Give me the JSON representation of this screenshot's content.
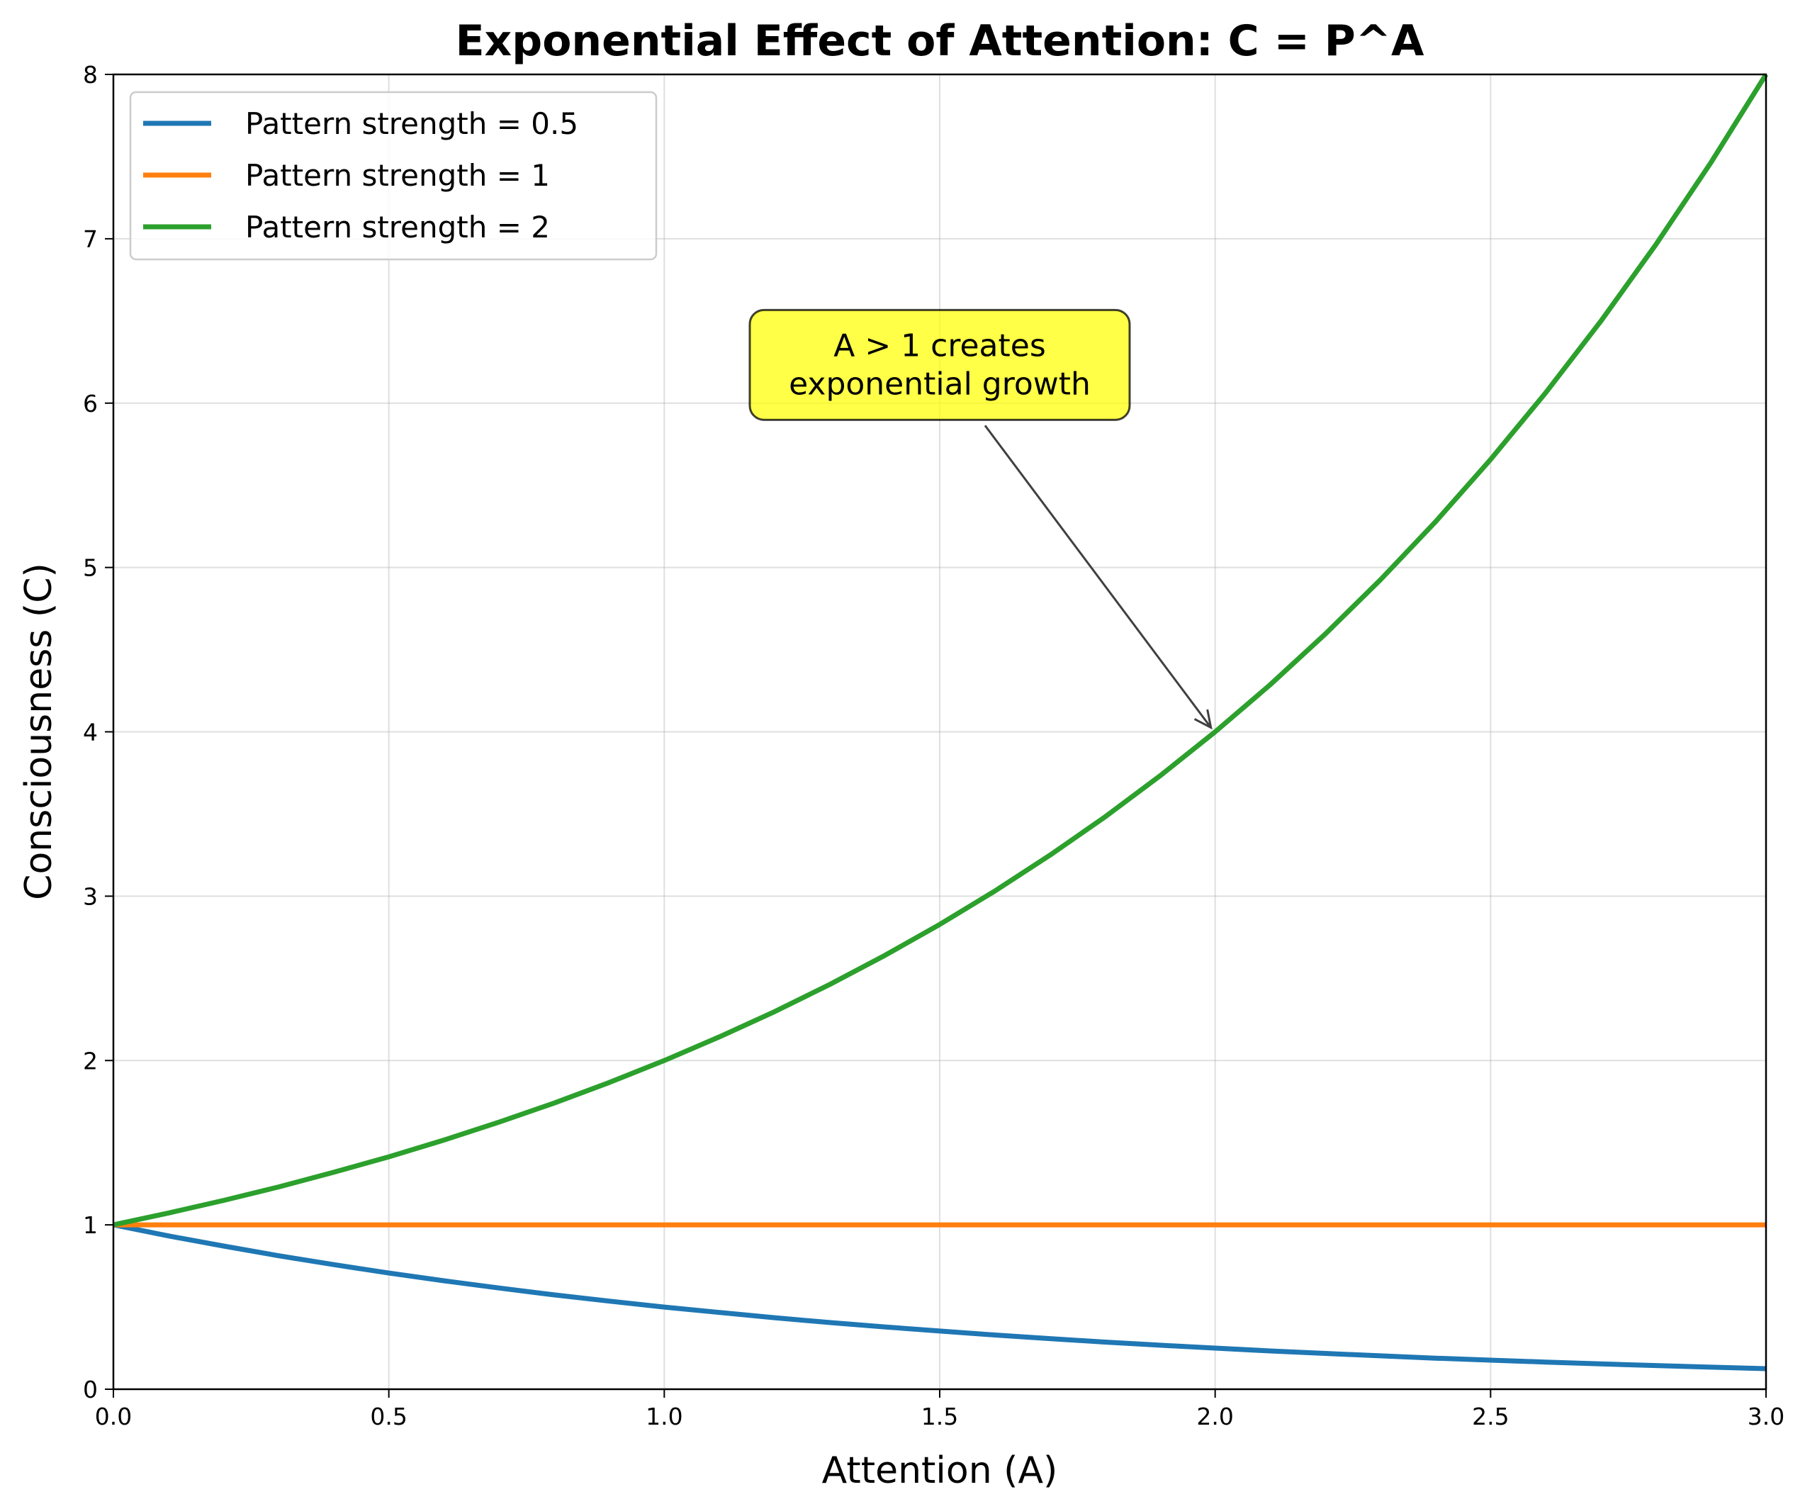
{
  "chart_data": {
    "type": "line",
    "title": "Exponential Effect of Attention: C = P^A",
    "xlabel": "Attention (A)",
    "ylabel": "Consciousness (C)",
    "xlim": [
      0.0,
      3.0
    ],
    "ylim": [
      0,
      8
    ],
    "xticks": [
      "0.0",
      "0.5",
      "1.0",
      "1.5",
      "2.0",
      "2.5",
      "3.0"
    ],
    "yticks": [
      "0",
      "1",
      "2",
      "3",
      "4",
      "5",
      "6",
      "7",
      "8"
    ],
    "grid": true,
    "legend_position": "upper-left",
    "x": [
      0.0,
      0.1,
      0.2,
      0.3,
      0.4,
      0.5,
      0.6,
      0.7,
      0.8,
      0.9,
      1.0,
      1.1,
      1.2,
      1.3,
      1.4,
      1.5,
      1.6,
      1.7,
      1.8,
      1.9,
      2.0,
      2.1,
      2.2,
      2.3,
      2.4,
      2.5,
      2.6,
      2.7,
      2.8,
      2.9,
      3.0
    ],
    "series": [
      {
        "name": "Pattern strength = 0.5",
        "color": "#1f77b4",
        "values": [
          1.0,
          0.933,
          0.871,
          0.812,
          0.758,
          0.707,
          0.66,
          0.616,
          0.574,
          0.536,
          0.5,
          0.467,
          0.435,
          0.406,
          0.379,
          0.354,
          0.33,
          0.308,
          0.287,
          0.268,
          0.25,
          0.233,
          0.218,
          0.203,
          0.189,
          0.177,
          0.165,
          0.154,
          0.144,
          0.134,
          0.125
        ]
      },
      {
        "name": "Pattern strength = 1",
        "color": "#ff7f0e",
        "values": [
          1,
          1,
          1,
          1,
          1,
          1,
          1,
          1,
          1,
          1,
          1,
          1,
          1,
          1,
          1,
          1,
          1,
          1,
          1,
          1,
          1,
          1,
          1,
          1,
          1,
          1,
          1,
          1,
          1,
          1,
          1
        ]
      },
      {
        "name": "Pattern strength = 2",
        "color": "#2ca02c",
        "values": [
          1.0,
          1.072,
          1.149,
          1.231,
          1.32,
          1.414,
          1.516,
          1.625,
          1.741,
          1.866,
          2.0,
          2.144,
          2.297,
          2.462,
          2.639,
          2.828,
          3.031,
          3.249,
          3.482,
          3.732,
          4.0,
          4.287,
          4.595,
          4.925,
          5.278,
          5.657,
          6.063,
          6.498,
          6.964,
          7.464,
          8.0
        ]
      }
    ],
    "annotation": {
      "lines": [
        "A > 1 creates",
        "exponential growth"
      ],
      "point": [
        2.0,
        4.0
      ],
      "text_anchor": [
        1.5,
        5.95
      ],
      "box_color": "#ffff00"
    }
  }
}
